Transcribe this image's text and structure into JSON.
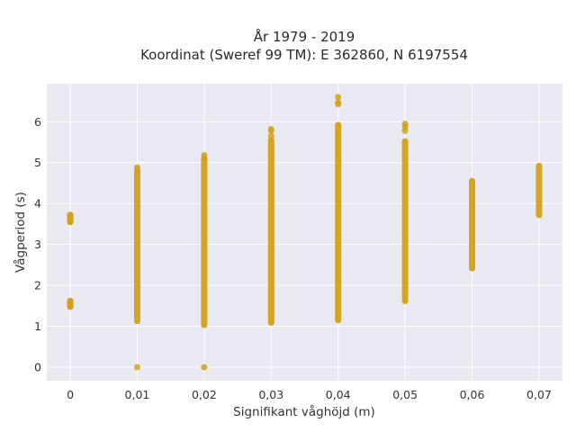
{
  "chart_data": {
    "type": "scatter",
    "title_lines": [
      "År 1979 - 2019",
      "Koordinat (Sweref 99 TM): E 362860, N 6197554"
    ],
    "xlabel": "Signifikant våghöjd (m)",
    "ylabel": "Vågperiod (s)",
    "x_ticks": [
      {
        "value": 0,
        "label": "0"
      },
      {
        "value": 0.01,
        "label": "0,01"
      },
      {
        "value": 0.02,
        "label": "0,02"
      },
      {
        "value": 0.03,
        "label": "0,03"
      },
      {
        "value": 0.04,
        "label": "0,04"
      },
      {
        "value": 0.05,
        "label": "0,05"
      },
      {
        "value": 0.06,
        "label": "0,06"
      },
      {
        "value": 0.07,
        "label": "0,07"
      }
    ],
    "y_ticks": [
      {
        "value": 0,
        "label": "0"
      },
      {
        "value": 1,
        "label": "1"
      },
      {
        "value": 2,
        "label": "2"
      },
      {
        "value": 3,
        "label": "3"
      },
      {
        "value": 4,
        "label": "4"
      },
      {
        "value": 5,
        "label": "5"
      },
      {
        "value": 6,
        "label": "6"
      }
    ],
    "xlim": [
      -0.0035,
      0.0735
    ],
    "ylim": [
      -0.33,
      6.93
    ],
    "grid": true,
    "marker_color": "#d4a017",
    "background_color": "#e9e9f1",
    "columns": [
      {
        "x": 0,
        "ranges": [
          [
            3.55,
            3.72
          ],
          [
            1.48,
            1.62
          ]
        ],
        "points": [
          3.72,
          3.66,
          3.6,
          3.55,
          1.62,
          1.57,
          1.52,
          1.48
        ]
      },
      {
        "x": 0.01,
        "ranges": [
          [
            1.13,
            4.78
          ]
        ],
        "points": [
          4.88,
          4.8,
          0.0
        ]
      },
      {
        "x": 0.02,
        "ranges": [
          [
            1.03,
            5.08
          ]
        ],
        "points": [
          5.18,
          5.1,
          0.0
        ]
      },
      {
        "x": 0.03,
        "ranges": [
          [
            1.09,
            5.55
          ]
        ],
        "points": [
          5.82,
          5.78,
          5.65
        ]
      },
      {
        "x": 0.04,
        "ranges": [
          [
            1.15,
            5.92
          ]
        ],
        "points": [
          6.6,
          6.47,
          6.43
        ]
      },
      {
        "x": 0.05,
        "ranges": [
          [
            1.62,
            5.52
          ]
        ],
        "points": [
          5.95,
          5.88,
          5.78
        ]
      },
      {
        "x": 0.06,
        "ranges": [
          [
            2.42,
            4.55
          ]
        ],
        "points": []
      },
      {
        "x": 0.07,
        "ranges": [
          [
            3.72,
            4.92
          ]
        ],
        "points": []
      }
    ]
  }
}
